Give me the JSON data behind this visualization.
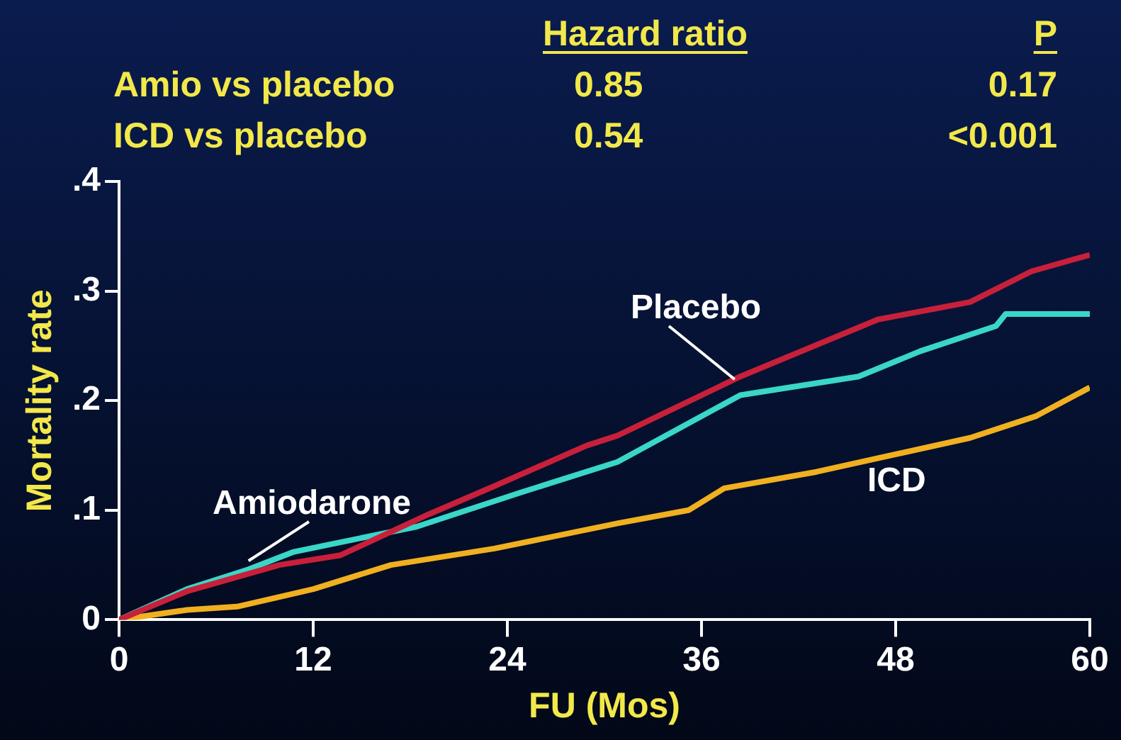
{
  "chart_data": {
    "type": "line",
    "xlabel": "FU (Mos)",
    "ylabel": "Mortality rate",
    "annotations": [
      "Hazard ratio",
      "P",
      "Amio vs placebo",
      "0.85",
      "0.17",
      "ICD vs placebo",
      "0.54",
      "<0.001"
    ],
    "xlim": [
      0,
      60
    ],
    "xticks": [
      0,
      12,
      24,
      36,
      48,
      60
    ],
    "ylim": [
      0,
      0.4
    ],
    "yticks": [
      0,
      {
        "value": 0.1,
        "label": ".1"
      },
      {
        "value": 0.2,
        "label": ".2"
      },
      {
        "value": 0.3,
        "label": ".3"
      },
      {
        "value": 0.4,
        "label": ".4"
      }
    ],
    "grid": false,
    "legend": false,
    "marker": "none",
    "line_style": "solid",
    "series": [
      {
        "name": "Placebo",
        "color": "#c8203a",
        "x": [
          0,
          4.2,
          9.9,
          13.7,
          19.1,
          23.2,
          28.9,
          30.8,
          38.4,
          46.9,
          52.6,
          56.4,
          60
        ],
        "values": [
          0,
          0.026,
          0.05,
          0.059,
          0.096,
          0.122,
          0.159,
          0.168,
          0.222,
          0.274,
          0.29,
          0.318,
          0.333
        ]
      },
      {
        "name": "Amiodarone",
        "color": "#3ad6c8",
        "x": [
          0,
          4.2,
          8,
          10.8,
          18.4,
          24.8,
          30.8,
          38.4,
          45.7,
          49.5,
          54.2,
          54.8,
          60
        ],
        "values": [
          0,
          0.028,
          0.046,
          0.062,
          0.085,
          0.116,
          0.144,
          0.205,
          0.222,
          0.245,
          0.268,
          0.279,
          0.279
        ]
      },
      {
        "name": "ICD",
        "color": "#f0b020",
        "x": [
          0,
          4.2,
          7.3,
          12,
          16.8,
          23.2,
          30.8,
          35.2,
          37.4,
          43.1,
          52.6,
          56.7,
          60
        ],
        "values": [
          0,
          0.009,
          0.012,
          0.028,
          0.05,
          0.065,
          0.088,
          0.1,
          0.12,
          0.135,
          0.166,
          0.186,
          0.212
        ]
      }
    ]
  }
}
